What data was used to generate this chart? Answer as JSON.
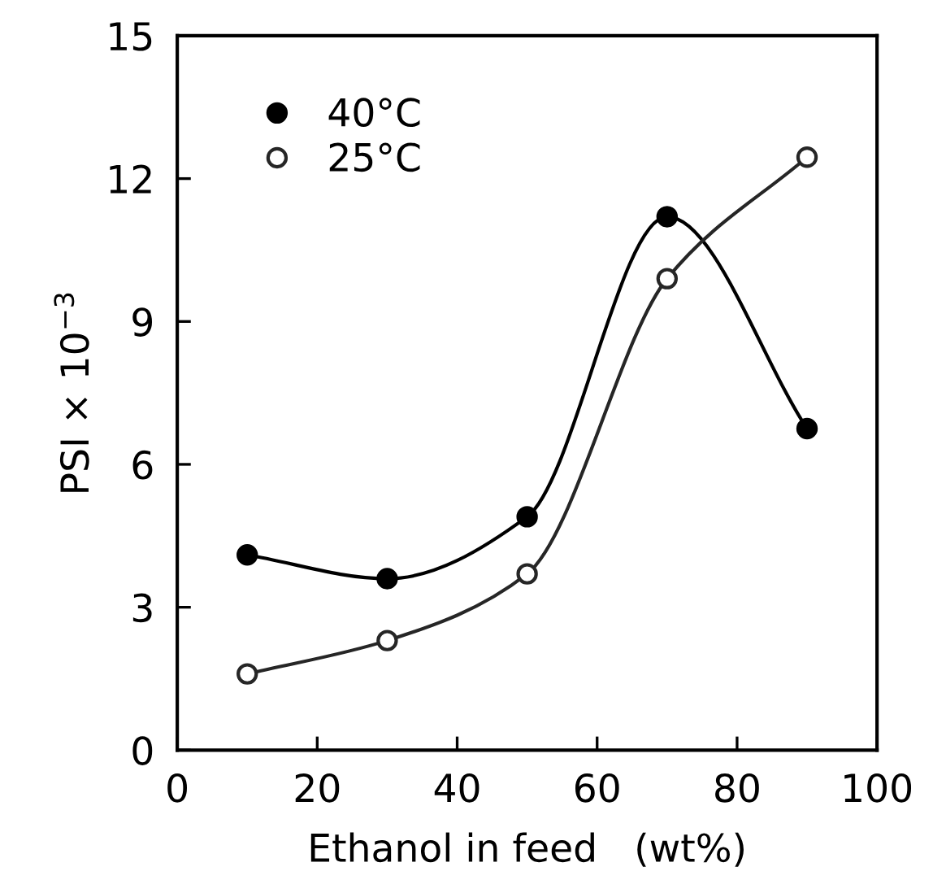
{
  "chart_data": {
    "type": "line",
    "xlabel": "Ethanol in feed   (wt%)",
    "ylabel": "PSI × 10$^{−3}$",
    "x": [
      10,
      30,
      50,
      70,
      90
    ],
    "series": [
      {
        "name": "40°C",
        "color": "#000000",
        "values": [
          4.1,
          3.6,
          4.9,
          11.2,
          6.75
        ]
      },
      {
        "name": "25°C",
        "color": "#262626",
        "values": [
          1.6,
          2.3,
          3.7,
          9.9,
          12.45
        ]
      }
    ],
    "xlim": [
      0,
      100
    ],
    "xticks": [
      0,
      20,
      40,
      60,
      80,
      100
    ],
    "ylim": [
      0,
      15
    ],
    "yticks": [
      0,
      3,
      6,
      9,
      12,
      15
    ],
    "grid": false,
    "legend": "top left",
    "marker": "circle",
    "line_style": "solid"
  }
}
